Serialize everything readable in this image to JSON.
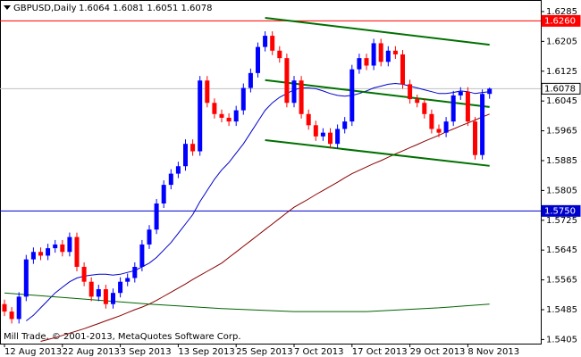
{
  "chart_data": {
    "type": "candlestick",
    "title": "GBPUSD,Daily",
    "quote": "1.6064 1.6081 1.6051 1.6078",
    "footer": "Mill Trade, © 2001-2013, MetaQuotes Software Corp.",
    "categories": [
      "12 Aug 2013",
      null,
      null,
      null,
      null,
      null,
      null,
      null,
      "22 Aug 2013",
      null,
      null,
      null,
      null,
      null,
      null,
      null,
      "3 Sep 2013",
      null,
      null,
      null,
      null,
      null,
      null,
      null,
      "13 Sep 2013",
      null,
      null,
      null,
      null,
      null,
      null,
      null,
      "25 Sep 2013",
      null,
      null,
      null,
      null,
      null,
      null,
      null,
      "7 Oct 2013",
      null,
      null,
      null,
      null,
      null,
      null,
      null,
      "17 Oct 2013",
      null,
      null,
      null,
      null,
      null,
      null,
      null,
      "29 Oct 2013",
      null,
      null,
      null,
      null,
      null,
      null,
      null,
      "8 Nov 2013",
      null,
      null,
      null
    ],
    "open": [
      1.55,
      1.548,
      1.546,
      1.552,
      1.562,
      1.564,
      1.563,
      1.565,
      1.566,
      1.564,
      1.568,
      1.56,
      1.556,
      1.552,
      1.554,
      1.55,
      1.553,
      1.556,
      1.557,
      1.56,
      1.566,
      1.57,
      1.577,
      1.582,
      1.585,
      1.587,
      1.593,
      1.591,
      1.61,
      1.604,
      1.601,
      1.6,
      1.599,
      1.602,
      1.608,
      1.612,
      1.619,
      1.622,
      1.618,
      1.616,
      1.604,
      1.61,
      1.601,
      1.598,
      1.595,
      1.596,
      1.593,
      1.597,
      1.599,
      1.613,
      1.616,
      1.614,
      1.62,
      1.615,
      1.618,
      1.617,
      1.609,
      1.605,
      1.604,
      1.601,
      1.597,
      1.596,
      1.599,
      1.606,
      1.607,
      1.599,
      1.59,
      1.6064
    ],
    "high": [
      1.5512,
      1.5492,
      1.5532,
      1.5632,
      1.5652,
      1.5652,
      1.5662,
      1.5672,
      1.5672,
      1.5692,
      1.5692,
      1.5612,
      1.5572,
      1.5552,
      1.5552,
      1.5542,
      1.5572,
      1.5582,
      1.5612,
      1.5672,
      1.5712,
      1.5782,
      1.5832,
      1.5862,
      1.5882,
      1.5942,
      1.5942,
      1.6112,
      1.6112,
      1.6052,
      1.6022,
      1.6012,
      1.6032,
      1.6092,
      1.6132,
      1.6202,
      1.6232,
      1.6232,
      1.6192,
      1.6172,
      1.6112,
      1.6112,
      1.6022,
      1.5992,
      1.5972,
      1.5972,
      1.5982,
      1.6002,
      1.6142,
      1.6172,
      1.6172,
      1.6212,
      1.6212,
      1.6192,
      1.6192,
      1.6182,
      1.6102,
      1.6062,
      1.6052,
      1.6022,
      1.5982,
      1.6002,
      1.6072,
      1.6082,
      1.6082,
      1.6002,
      1.6076,
      1.6081
    ],
    "low": [
      1.5468,
      1.5448,
      1.5448,
      1.5508,
      1.5608,
      1.5618,
      1.5618,
      1.5638,
      1.5628,
      1.5628,
      1.5588,
      1.5548,
      1.5508,
      1.5508,
      1.5488,
      1.5488,
      1.5518,
      1.5548,
      1.5558,
      1.5588,
      1.5648,
      1.5688,
      1.5758,
      1.5808,
      1.5838,
      1.5858,
      1.5898,
      1.5898,
      1.6028,
      1.5998,
      1.5988,
      1.5978,
      1.5978,
      1.6008,
      1.6068,
      1.6108,
      1.6178,
      1.6168,
      1.6148,
      1.6028,
      1.6028,
      1.5998,
      1.5968,
      1.5938,
      1.5938,
      1.5918,
      1.5918,
      1.5958,
      1.5978,
      1.6118,
      1.6128,
      1.6128,
      1.6138,
      1.6138,
      1.6158,
      1.6078,
      1.6038,
      1.6028,
      1.5998,
      1.5958,
      1.5948,
      1.5948,
      1.5978,
      1.6048,
      1.5978,
      1.5888,
      1.5888,
      1.6051
    ],
    "close": [
      1.548,
      1.546,
      1.552,
      1.562,
      1.564,
      1.563,
      1.565,
      1.566,
      1.564,
      1.568,
      1.56,
      1.556,
      1.552,
      1.554,
      1.55,
      1.553,
      1.556,
      1.557,
      1.56,
      1.566,
      1.57,
      1.577,
      1.582,
      1.585,
      1.587,
      1.593,
      1.591,
      1.61,
      1.604,
      1.601,
      1.6,
      1.599,
      1.602,
      1.608,
      1.612,
      1.619,
      1.622,
      1.618,
      1.616,
      1.604,
      1.61,
      1.601,
      1.598,
      1.595,
      1.596,
      1.593,
      1.597,
      1.599,
      1.613,
      1.616,
      1.614,
      1.62,
      1.615,
      1.618,
      1.617,
      1.609,
      1.605,
      1.604,
      1.601,
      1.597,
      1.596,
      1.599,
      1.606,
      1.607,
      1.599,
      1.59,
      1.6064,
      1.6078
    ],
    "up_color": "#0000ff",
    "down_color": "#ff0000",
    "overlays": [
      {
        "color": "#0000cc",
        "values": [
          null,
          null,
          null,
          1.5455,
          1.547,
          1.549,
          1.551,
          1.553,
          1.5545,
          1.556,
          1.557,
          1.5575,
          1.5578,
          1.558,
          1.558,
          1.5578,
          1.558,
          1.5585,
          1.559,
          1.56,
          1.561,
          1.5625,
          1.5645,
          1.5665,
          1.569,
          1.5715,
          1.574,
          1.5775,
          1.5805,
          1.5835,
          1.586,
          1.588,
          1.5905,
          1.593,
          1.596,
          1.599,
          1.602,
          1.604,
          1.6055,
          1.6065,
          1.6075,
          1.608,
          1.608,
          1.6078,
          1.6072,
          1.6065,
          1.606,
          1.6058,
          1.606,
          1.6065,
          1.6072,
          1.608,
          1.6085,
          1.609,
          1.6092,
          1.609,
          1.6085,
          1.608,
          1.6075,
          1.607,
          1.6065,
          1.6065,
          1.6068,
          1.6072,
          1.607,
          1.6065,
          1.6068,
          1.607
        ]
      },
      {
        "color": "#8b0000",
        "values": [
          null,
          null,
          null,
          null,
          null,
          1.54,
          1.5405,
          1.541,
          1.5416,
          1.5422,
          1.5428,
          1.5434,
          1.5441,
          1.5448,
          1.5455,
          1.5462,
          1.5469,
          1.5477,
          1.5485,
          1.5492,
          1.55,
          1.551,
          1.5521,
          1.5532,
          1.5543,
          1.5554,
          1.5566,
          1.5577,
          1.5588,
          1.5599,
          1.561,
          1.5625,
          1.564,
          1.5655,
          1.567,
          1.5685,
          1.57,
          1.5715,
          1.573,
          1.5745,
          1.576,
          1.5771,
          1.5782,
          1.5794,
          1.5805,
          1.5816,
          1.5827,
          1.5839,
          1.585,
          1.5859,
          1.5868,
          1.5877,
          1.5885,
          1.5894,
          1.5903,
          1.5911,
          1.592,
          1.5928,
          1.5937,
          1.5945,
          1.5953,
          1.5962,
          1.597,
          1.5978,
          1.5986,
          1.5994,
          1.6002,
          1.601
        ]
      },
      {
        "color": "#006400",
        "x": [
          0,
          10,
          20,
          30,
          40,
          50,
          60,
          67
        ],
        "values": [
          1.553,
          1.5515,
          1.55,
          1.5488,
          1.548,
          1.548,
          1.549,
          1.55
        ]
      }
    ],
    "trendlines": [
      {
        "color": "#007000",
        "from": [
          36,
          1.6268
        ],
        "to": [
          67,
          1.6196
        ]
      },
      {
        "color": "#007000",
        "from": [
          36,
          1.6101
        ],
        "to": [
          67,
          1.6029
        ]
      },
      {
        "color": "#007000",
        "from": [
          36,
          1.594
        ],
        "to": [
          67,
          1.5871
        ]
      }
    ],
    "levels": [
      {
        "value": 1.626,
        "label": "1.6260",
        "color": "#ff0000"
      },
      {
        "value": 1.6078,
        "label": "1.6078",
        "color": "#c0c0c0"
      },
      {
        "value": 1.575,
        "label": "1.5750",
        "color": "#0000cc"
      }
    ],
    "ylim": [
      1.5394,
      1.6316
    ],
    "yticks": [
      1.6285,
      1.6205,
      1.6125,
      1.6045,
      1.5965,
      1.5885,
      1.5805,
      1.5725,
      1.5645,
      1.5565,
      1.5485,
      1.5405
    ]
  }
}
